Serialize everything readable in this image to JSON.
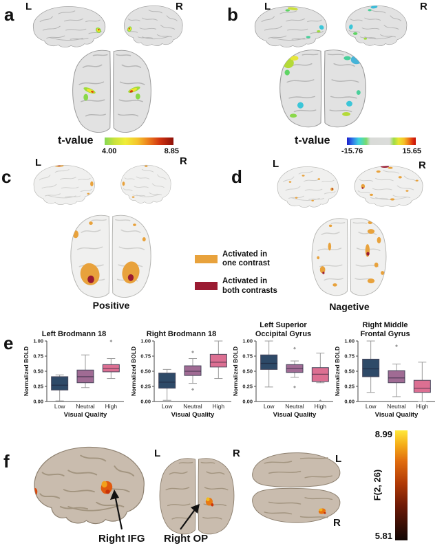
{
  "panels": {
    "a": {
      "letter": "a",
      "hemi_left": "L",
      "hemi_right": "R",
      "colorbar_title": "t-value",
      "colorbar_min": "4.00",
      "colorbar_max": "8.85"
    },
    "b": {
      "letter": "b",
      "hemi_left": "L",
      "hemi_right": "R",
      "colorbar_title": "t-value",
      "colorbar_min": "-15.76",
      "colorbar_max": "15.65"
    },
    "c": {
      "letter": "c",
      "hemi_left": "L",
      "hemi_right": "R",
      "caption": "Positive"
    },
    "d": {
      "letter": "d",
      "hemi_left": "L",
      "hemi_right": "R",
      "caption": "Nagetive"
    },
    "e": {
      "letter": "e"
    },
    "f": {
      "letter": "f",
      "posterior_left": "L",
      "posterior_right": "R",
      "axial_left": "L",
      "axial_right": "R",
      "annotation_ifg": "Right IFG",
      "annotation_op": "Right OP",
      "colorbar_title": "F(2, 26)",
      "colorbar_min": "5.81",
      "colorbar_max": "8.99"
    }
  },
  "legend": {
    "items": [
      {
        "label": "Activated in one contrast",
        "color": "#E8A23C"
      },
      {
        "label": "Activated in both contrasts",
        "color": "#9A1B32"
      }
    ]
  },
  "colors": {
    "activation_one": "#E8A23C",
    "activation_both": "#9A1B32",
    "box": [
      "#2E4A68",
      "#A06B94",
      "#DC6F92"
    ],
    "gray_brain": "#e2e2e2",
    "tan_brain": "#c9bcae"
  },
  "chart_data": [
    {
      "type": "box",
      "title": "Left Brodmann 18",
      "title_lines": [
        "Left Brodmann 18"
      ],
      "xlabel": "Visual Quality",
      "ylabel": "Normalized BOLD",
      "categories": [
        "Low",
        "Neutral",
        "High"
      ],
      "ylim": [
        0,
        1
      ],
      "yticks": [
        0,
        0.25,
        0.5,
        0.75,
        1
      ],
      "ytick_labels": [
        "0.00",
        "0.25",
        "0.50",
        "0.75",
        "1.00"
      ],
      "boxes": [
        {
          "whislo": 0.01,
          "q1": 0.19,
          "med": 0.27,
          "q3": 0.41,
          "whishi": 0.44,
          "outliers": []
        },
        {
          "whislo": 0.23,
          "q1": 0.31,
          "med": 0.41,
          "q3": 0.52,
          "whishi": 0.77,
          "outliers": []
        },
        {
          "whislo": 0.38,
          "q1": 0.49,
          "med": 0.55,
          "q3": 0.61,
          "whishi": 0.71,
          "outliers": [
            1.0
          ]
        }
      ]
    },
    {
      "type": "box",
      "title": "Right Brodmann 18",
      "title_lines": [
        "Right Brodmann 18"
      ],
      "xlabel": "Visual Quality",
      "ylabel": "Normalized BOLD",
      "categories": [
        "Low",
        "Neutral",
        "High"
      ],
      "ylim": [
        0,
        1
      ],
      "yticks": [
        0,
        0.25,
        0.5,
        0.75,
        1
      ],
      "ytick_labels": [
        "0.00",
        "0.25",
        "0.50",
        "0.75",
        "1.00"
      ],
      "boxes": [
        {
          "whislo": 0.02,
          "q1": 0.22,
          "med": 0.32,
          "q3": 0.47,
          "whishi": 0.53,
          "outliers": []
        },
        {
          "whislo": 0.3,
          "q1": 0.43,
          "med": 0.5,
          "q3": 0.59,
          "whishi": 0.71,
          "outliers": [
            0.2,
            0.82
          ]
        },
        {
          "whislo": 0.38,
          "q1": 0.57,
          "med": 0.65,
          "q3": 0.78,
          "whishi": 1.0,
          "outliers": []
        }
      ]
    },
    {
      "type": "box",
      "title": "Left Superior Occipital Gyrus",
      "title_lines": [
        "Left Superior",
        "Occipital Gyrus"
      ],
      "xlabel": "Visual Quality",
      "ylabel": "Normalized BOLD",
      "categories": [
        "Low",
        "Neutral",
        "High"
      ],
      "ylim": [
        0,
        1
      ],
      "yticks": [
        0,
        0.25,
        0.5,
        0.75,
        1
      ],
      "ytick_labels": [
        "0.00",
        "0.25",
        "0.50",
        "0.75",
        "1.00"
      ],
      "boxes": [
        {
          "whislo": 0.24,
          "q1": 0.53,
          "med": 0.63,
          "q3": 0.77,
          "whishi": 1.0,
          "outliers": []
        },
        {
          "whislo": 0.4,
          "q1": 0.48,
          "med": 0.55,
          "q3": 0.61,
          "whishi": 0.67,
          "outliers": [
            0.24,
            0.88
          ]
        },
        {
          "whislo": 0.31,
          "q1": 0.33,
          "med": 0.45,
          "q3": 0.56,
          "whishi": 0.8,
          "outliers": [
            0.01
          ]
        }
      ]
    },
    {
      "type": "box",
      "title": "Right Middle Frontal Gyrus",
      "title_lines": [
        "Right Middle",
        "Frontal Gyrus"
      ],
      "xlabel": "Visual Quality",
      "ylabel": "Normalized BOLD",
      "categories": [
        "Low",
        "Neutral",
        "High"
      ],
      "ylim": [
        0,
        1
      ],
      "yticks": [
        0,
        0.25,
        0.5,
        0.75,
        1
      ],
      "ytick_labels": [
        "0.00",
        "0.25",
        "0.50",
        "0.75",
        "1.00"
      ],
      "boxes": [
        {
          "whislo": 0.15,
          "q1": 0.41,
          "med": 0.54,
          "q3": 0.7,
          "whishi": 1.0,
          "outliers": []
        },
        {
          "whislo": 0.08,
          "q1": 0.31,
          "med": 0.39,
          "q3": 0.51,
          "whishi": 0.62,
          "outliers": [
            0.92
          ]
        },
        {
          "whislo": 0.0,
          "q1": 0.15,
          "med": 0.22,
          "q3": 0.35,
          "whishi": 0.65,
          "outliers": []
        }
      ]
    }
  ]
}
